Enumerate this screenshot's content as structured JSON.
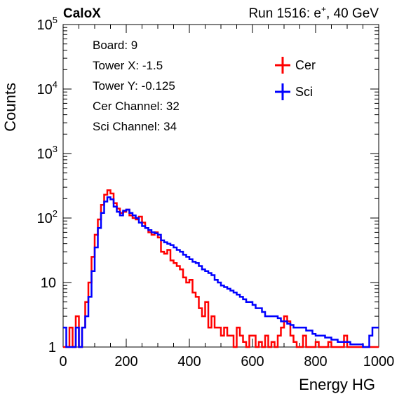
{
  "header": {
    "experiment": "CaloX",
    "run_prefix": "Run 1516: e",
    "run_sup": "+",
    "run_suffix": ", 40 GeV"
  },
  "info_box": {
    "lines": [
      "Board: 9",
      "Tower X: -1.5",
      "Tower Y: -0.125",
      "Cer Channel: 32",
      "Sci Channel: 34"
    ]
  },
  "chart_data": {
    "type": "line",
    "step": true,
    "xlabel": "Energy HG",
    "ylabel": "Counts",
    "xlim": [
      0,
      1000
    ],
    "ylim": [
      1,
      100000
    ],
    "yscale": "log",
    "x_ticks": [
      "0",
      "200",
      "400",
      "600",
      "800",
      "1000"
    ],
    "y_ticks": [
      {
        "base": "1",
        "exp": ""
      },
      {
        "base": "10",
        "exp": ""
      },
      {
        "base": "10",
        "exp": "2"
      },
      {
        "base": "10",
        "exp": "3"
      },
      {
        "base": "10",
        "exp": "4"
      },
      {
        "base": "10",
        "exp": "5"
      }
    ],
    "legend_position": "top-right",
    "series": [
      {
        "name": "Cer",
        "color": "#ff0000",
        "x": [
          0,
          10,
          20,
          30,
          40,
          50,
          60,
          70,
          80,
          90,
          100,
          110,
          120,
          130,
          140,
          150,
          160,
          170,
          180,
          190,
          200,
          210,
          220,
          230,
          240,
          250,
          260,
          270,
          280,
          290,
          300,
          310,
          320,
          330,
          340,
          350,
          360,
          370,
          380,
          390,
          400,
          410,
          420,
          430,
          440,
          450,
          460,
          470,
          480,
          490,
          500,
          510,
          520,
          530,
          540,
          550,
          560,
          570,
          580,
          590,
          600,
          610,
          620,
          630,
          640,
          650,
          660,
          670,
          680,
          690,
          700,
          710,
          720,
          730,
          740,
          750,
          760,
          770,
          780,
          790,
          800,
          810,
          820,
          830,
          840,
          850,
          860,
          870,
          880,
          890,
          900,
          910,
          920,
          930,
          940,
          950,
          960,
          970,
          980,
          990
        ],
        "values": [
          1,
          1,
          2,
          1,
          3,
          1,
          2,
          5,
          10,
          25,
          55,
          95,
          160,
          230,
          270,
          240,
          170,
          140,
          120,
          125,
          135,
          110,
          100,
          95,
          105,
          85,
          70,
          60,
          55,
          60,
          50,
          30,
          28,
          32,
          22,
          20,
          18,
          16,
          12,
          10,
          11,
          7,
          6,
          4,
          3,
          5,
          2,
          3,
          2,
          2,
          1.5,
          2,
          1.5,
          1.5,
          1,
          2,
          1.5,
          1.2,
          1,
          1.5,
          1.5,
          1,
          1.2,
          1,
          1.5,
          1,
          1.2,
          1,
          1.5,
          2,
          3,
          2.5,
          1.5,
          1.2,
          1,
          1,
          1.5,
          1,
          1,
          1,
          1.2,
          1,
          1,
          1,
          1.2,
          1,
          1,
          1,
          1,
          1.5,
          1,
          1,
          1,
          1,
          1,
          1,
          1,
          1,
          1,
          1
        ]
      },
      {
        "name": "Sci",
        "color": "#0000ff",
        "x": [
          0,
          10,
          20,
          30,
          40,
          50,
          60,
          70,
          80,
          90,
          100,
          110,
          120,
          130,
          140,
          150,
          160,
          170,
          180,
          190,
          200,
          210,
          220,
          230,
          240,
          250,
          260,
          270,
          280,
          290,
          300,
          310,
          320,
          330,
          340,
          350,
          360,
          370,
          380,
          390,
          400,
          410,
          420,
          430,
          440,
          450,
          460,
          470,
          480,
          490,
          500,
          510,
          520,
          530,
          540,
          550,
          560,
          570,
          580,
          590,
          600,
          610,
          620,
          630,
          640,
          650,
          660,
          670,
          680,
          690,
          700,
          710,
          720,
          730,
          740,
          750,
          760,
          770,
          780,
          790,
          800,
          810,
          820,
          830,
          840,
          850,
          860,
          870,
          880,
          890,
          900,
          910,
          920,
          930,
          940,
          950,
          960,
          970,
          980,
          990
        ],
        "values": [
          2,
          1,
          1,
          1,
          2,
          1,
          2,
          3,
          6,
          15,
          35,
          70,
          120,
          180,
          210,
          195,
          150,
          125,
          110,
          130,
          135,
          120,
          110,
          100,
          85,
          75,
          70,
          65,
          60,
          58,
          55,
          45,
          42,
          40,
          38,
          35,
          32,
          30,
          27,
          25,
          23,
          21,
          20,
          18,
          16,
          15,
          14,
          13,
          11,
          10,
          9,
          8.5,
          8,
          7.5,
          7,
          6.5,
          6,
          5.5,
          5,
          5,
          4.5,
          4,
          4,
          3.5,
          3,
          3,
          3,
          3,
          2.8,
          2.5,
          2.5,
          2.3,
          2.2,
          2,
          2,
          2,
          2,
          1.8,
          1.8,
          1.6,
          1.5,
          1.5,
          1.5,
          1.4,
          1.4,
          1.3,
          1.3,
          1.2,
          1.2,
          1.2,
          1.2,
          1.1,
          1.1,
          1.1,
          1.1,
          1,
          1,
          1.5,
          2,
          2
        ]
      }
    ]
  }
}
